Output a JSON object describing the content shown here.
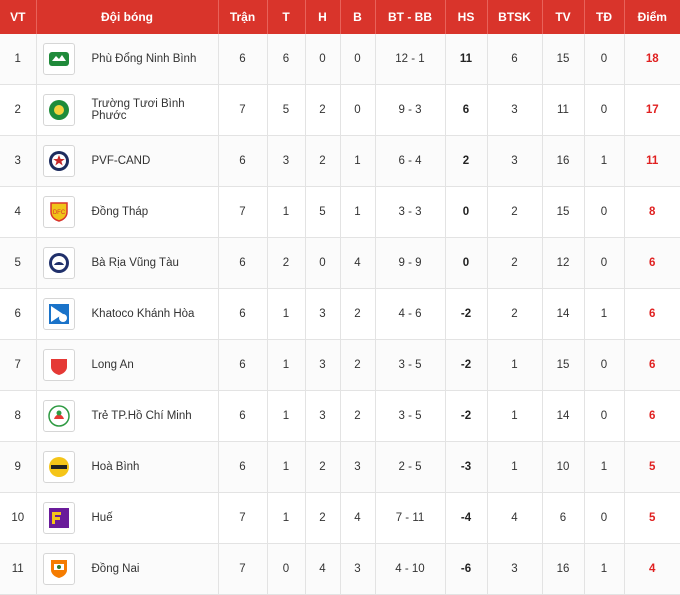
{
  "headers": {
    "vt": "VT",
    "team": "Đội bóng",
    "played": "Trận",
    "won": "T",
    "drawn": "H",
    "lost": "B",
    "goals": "BT - BB",
    "gd": "HS",
    "btsk": "BTSK",
    "tv": "TV",
    "td": "TĐ",
    "points": "Điểm"
  },
  "colors": {
    "header_bg": "#d9342b",
    "points": "#e02020"
  },
  "rows": [
    {
      "vt": "1",
      "team": "Phù Đổng Ninh Bình",
      "logo": "phu-dong-ninh-binh-logo",
      "played": "6",
      "won": "6",
      "drawn": "0",
      "lost": "0",
      "goals": "12 - 1",
      "gd": "11",
      "btsk": "6",
      "tv": "15",
      "td": "0",
      "points": "18"
    },
    {
      "vt": "2",
      "team": "Trường Tươi Bình Phước",
      "logo": "truong-tuoi-binh-phuoc-logo",
      "played": "7",
      "won": "5",
      "drawn": "2",
      "lost": "0",
      "goals": "9 - 3",
      "gd": "6",
      "btsk": "3",
      "tv": "11",
      "td": "0",
      "points": "17"
    },
    {
      "vt": "3",
      "team": "PVF-CAND",
      "logo": "pvf-cand-logo",
      "played": "6",
      "won": "3",
      "drawn": "2",
      "lost": "1",
      "goals": "6 - 4",
      "gd": "2",
      "btsk": "3",
      "tv": "16",
      "td": "1",
      "points": "11"
    },
    {
      "vt": "4",
      "team": "Đồng Tháp",
      "logo": "dong-thap-logo",
      "played": "7",
      "won": "1",
      "drawn": "5",
      "lost": "1",
      "goals": "3 - 3",
      "gd": "0",
      "btsk": "2",
      "tv": "15",
      "td": "0",
      "points": "8"
    },
    {
      "vt": "5",
      "team": "Bà Rịa Vũng Tàu",
      "logo": "ba-ria-vung-tau-logo",
      "played": "6",
      "won": "2",
      "drawn": "0",
      "lost": "4",
      "goals": "9 - 9",
      "gd": "0",
      "btsk": "2",
      "tv": "12",
      "td": "0",
      "points": "6"
    },
    {
      "vt": "6",
      "team": "Khatoco Khánh Hòa",
      "logo": "khatoco-khanh-hoa-logo",
      "played": "6",
      "won": "1",
      "drawn": "3",
      "lost": "2",
      "goals": "4 - 6",
      "gd": "-2",
      "btsk": "2",
      "tv": "14",
      "td": "1",
      "points": "6"
    },
    {
      "vt": "7",
      "team": "Long An",
      "logo": "long-an-logo",
      "played": "6",
      "won": "1",
      "drawn": "3",
      "lost": "2",
      "goals": "3 - 5",
      "gd": "-2",
      "btsk": "1",
      "tv": "15",
      "td": "0",
      "points": "6"
    },
    {
      "vt": "8",
      "team": "Trẻ TP.Hồ Chí Minh",
      "logo": "tre-tp-ho-chi-minh-logo",
      "played": "6",
      "won": "1",
      "drawn": "3",
      "lost": "2",
      "goals": "3 - 5",
      "gd": "-2",
      "btsk": "1",
      "tv": "14",
      "td": "0",
      "points": "6"
    },
    {
      "vt": "9",
      "team": "Hoà Bình",
      "logo": "hoa-binh-logo",
      "played": "6",
      "won": "1",
      "drawn": "2",
      "lost": "3",
      "goals": "2 - 5",
      "gd": "-3",
      "btsk": "1",
      "tv": "10",
      "td": "1",
      "points": "5"
    },
    {
      "vt": "10",
      "team": "Huế",
      "logo": "hue-logo",
      "played": "7",
      "won": "1",
      "drawn": "2",
      "lost": "4",
      "goals": "7 - 11",
      "gd": "-4",
      "btsk": "4",
      "tv": "6",
      "td": "0",
      "points": "5"
    },
    {
      "vt": "11",
      "team": "Đồng Nai",
      "logo": "dong-nai-logo",
      "played": "7",
      "won": "0",
      "drawn": "4",
      "lost": "3",
      "goals": "4 - 10",
      "gd": "-6",
      "btsk": "3",
      "tv": "16",
      "td": "1",
      "points": "4"
    }
  ]
}
